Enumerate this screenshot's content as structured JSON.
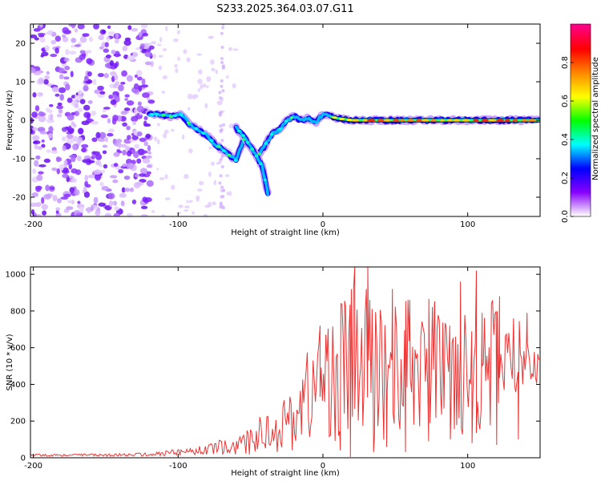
{
  "title": "S233.2025.364.03.07.G11",
  "chart_data": [
    {
      "type": "heatmap",
      "title": "S233.2025.364.03.07.G11",
      "xlabel": "Height of straight line (km)",
      "ylabel": "Frequency (Hz)",
      "xlim": [
        -202,
        150
      ],
      "ylim": [
        -25,
        25
      ],
      "xticks": [
        -200,
        -100,
        0,
        100
      ],
      "xtick_labels": [
        "-200",
        "-100",
        "0",
        "100"
      ],
      "yticks": [
        -20,
        -10,
        0,
        10,
        20
      ],
      "ytick_labels": [
        "-20",
        "-10",
        "0",
        "10",
        "20"
      ],
      "colorbar": {
        "label": "Normalized spectral amplitude",
        "range": [
          0,
          1
        ],
        "ticks": [
          0,
          0.2,
          0.4,
          0.6,
          0.8
        ],
        "tick_labels": [
          "0.0",
          "0.2",
          "0.4",
          "0.6",
          "0.8"
        ],
        "colormap": [
          "#ffffff",
          "#8800ff",
          "#0000ff",
          "#00ffff",
          "#00ff00",
          "#ffff00",
          "#ff8800",
          "#ff0000",
          "#ff0088"
        ]
      },
      "noise_region_x": [
        -202,
        -118
      ],
      "sparse_region_x": [
        -118,
        -60
      ],
      "ridge": {
        "x": [
          -120,
          -112,
          -105,
          -98,
          -92,
          -86,
          -80,
          -75,
          -70,
          -65,
          -60,
          -55,
          -50,
          -45,
          -40,
          -35,
          -30,
          -25,
          -20,
          -15,
          -10,
          -5,
          0,
          5,
          10,
          20,
          40,
          60,
          80,
          100,
          120,
          150
        ],
        "y": [
          1.5,
          1.5,
          1.0,
          1.5,
          -1.0,
          -2.5,
          -4.0,
          -6.0,
          -7.5,
          -9.0,
          -10.5,
          -5.0,
          -7.0,
          -9.5,
          -6.5,
          -3.5,
          -2.5,
          0.0,
          1.0,
          0.0,
          0.5,
          -0.5,
          1.5,
          1.0,
          0.5,
          0.0,
          0.0,
          0.0,
          0.0,
          0.0,
          0.0,
          0.0
        ]
      },
      "branch": {
        "x": [
          -60,
          -55,
          -48,
          -42,
          -38
        ],
        "y": [
          -2,
          -4,
          -8,
          -12,
          -19
        ]
      }
    },
    {
      "type": "line",
      "xlabel": "Height of straight line (km)",
      "ylabel": "SNR (10 * v/v)",
      "xlim": [
        -202,
        150
      ],
      "ylim": [
        0,
        1040
      ],
      "xticks": [
        -200,
        -100,
        0,
        100
      ],
      "xtick_labels": [
        "-200",
        "-100",
        "0",
        "100"
      ],
      "yticks": [
        0,
        200,
        400,
        600,
        800,
        1000
      ],
      "ytick_labels": [
        "0",
        "200",
        "400",
        "600",
        "800",
        "1000"
      ],
      "color": "#ee3333",
      "x_start": -202,
      "x_step": 0.8,
      "envelope": {
        "x": [
          -202,
          -150,
          -120,
          -100,
          -80,
          -70,
          -60,
          -50,
          -40,
          -30,
          -20,
          -10,
          0,
          10,
          20,
          30,
          40,
          60,
          80,
          100,
          120,
          140,
          150
        ],
        "mean": [
          15,
          15,
          18,
          30,
          45,
          60,
          55,
          90,
          150,
          160,
          220,
          350,
          420,
          470,
          520,
          500,
          480,
          500,
          520,
          480,
          520,
          560,
          560
        ],
        "amp": [
          8,
          8,
          10,
          20,
          30,
          45,
          40,
          80,
          120,
          130,
          180,
          280,
          320,
          400,
          440,
          440,
          400,
          380,
          360,
          380,
          360,
          160,
          160
        ]
      },
      "peaks": [
        {
          "x": 22,
          "y": 1040
        },
        {
          "x": 31,
          "y": 1040
        },
        {
          "x": 106,
          "y": 1020
        },
        {
          "x": 48,
          "y": 920
        },
        {
          "x": 95,
          "y": 960
        },
        {
          "x": 15,
          "y": 855
        },
        {
          "x": 60,
          "y": 860
        },
        {
          "x": 122,
          "y": 880
        },
        {
          "x": 141,
          "y": 790
        },
        {
          "x": -2,
          "y": 720
        },
        {
          "x": 77,
          "y": 830
        },
        {
          "x": 110,
          "y": 790
        }
      ],
      "dips": [
        {
          "x": 19,
          "y": 5
        },
        {
          "x": 35,
          "y": 30
        },
        {
          "x": 57,
          "y": 30
        },
        {
          "x": 12,
          "y": 40
        },
        {
          "x": 44,
          "y": 60
        },
        {
          "x": 103,
          "y": 80
        },
        {
          "x": 120,
          "y": 70
        },
        {
          "x": 73,
          "y": 90
        },
        {
          "x": 88,
          "y": 100
        },
        {
          "x": 135,
          "y": 100
        }
      ],
      "series": [
        {
          "name": "SNR",
          "color": "#ee3333"
        }
      ]
    }
  ]
}
